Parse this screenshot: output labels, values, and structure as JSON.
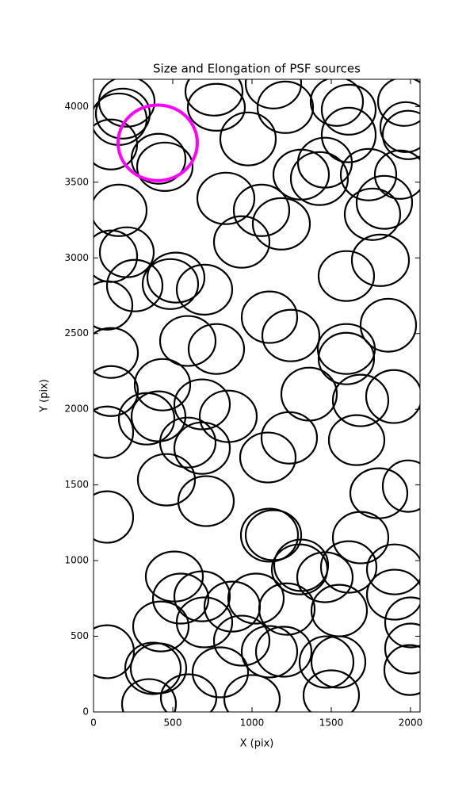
{
  "chart_data": {
    "type": "ellipse",
    "title": "Size and Elongation of PSF sources",
    "x_label": "X (pix)",
    "y_label": "Y (pix)",
    "xlim": [
      0,
      2060
    ],
    "ylim": [
      0,
      4180
    ],
    "xticks": [
      0,
      500,
      1000,
      1500,
      2000
    ],
    "yticks": [
      0,
      500,
      1000,
      1500,
      2000,
      2500,
      3000,
      3500,
      4000
    ],
    "series": [
      {
        "color": "#000000",
        "x": [
          210,
          185,
          160,
          760,
          775,
          1135,
          1210,
          1535,
          1610,
          1960,
          1970,
          1985,
          975,
          110,
          1610,
          410,
          450,
          1310,
          1460,
          1425,
          1735,
          1935,
          835,
          1060,
          1185,
          1835,
          1760,
          160,
          935,
          210,
          110,
          1810,
          1595,
          520,
          485,
          260,
          700,
          85,
          1110,
          1245,
          1860,
          595,
          775,
          110,
          1595,
          1595,
          110,
          1360,
          1685,
          1895,
          435,
          685,
          850,
          410,
          335,
          85,
          1235,
          1660,
          595,
          685,
          1100,
          460,
          1800,
          1985,
          710,
          85,
          1110,
          1135,
          1685,
          1310,
          1300,
          1610,
          1900,
          1460,
          510,
          550,
          685,
          1025,
          875,
          1220,
          1550,
          1900,
          425,
          700,
          935,
          1110,
          1200,
          1545,
          1470,
          2000,
          2000,
          1995,
          85,
          375,
          410,
          800,
          1500,
          600,
          350,
          1000
        ],
        "y": [
          4032,
          3953,
          3916,
          4100,
          3995,
          4152,
          3995,
          4032,
          3979,
          4032,
          3864,
          3812,
          3786,
          3749,
          3812,
          3655,
          3602,
          3550,
          3629,
          3524,
          3550,
          3550,
          3393,
          3314,
          3225,
          3367,
          3288,
          3314,
          3105,
          3037,
          3011,
          2984,
          2880,
          2870,
          2827,
          2817,
          2790,
          2686,
          2608,
          2487,
          2555,
          2451,
          2398,
          2372,
          2398,
          2335,
          2120,
          2100,
          2058,
          2084,
          2162,
          2032,
          1953,
          1953,
          1937,
          1848,
          1811,
          1796,
          1780,
          1743,
          1681,
          1534,
          1445,
          1492,
          1393,
          1288,
          1168,
          1168,
          1152,
          969,
          942,
          958,
          942,
          890,
          895,
          749,
          764,
          749,
          696,
          680,
          670,
          775,
          565,
          592,
          471,
          398,
          398,
          330,
          330,
          592,
          419,
          277,
          398,
          288,
          288,
          262,
          110,
          94,
          52,
          84
        ],
        "width": [
          350,
          340,
          350,
          360,
          360,
          350,
          350,
          330,
          340,
          330,
          320,
          320,
          350,
          330,
          340,
          340,
          350,
          350,
          340,
          360,
          350,
          320,
          360,
          350,
          360,
          350,
          350,
          350,
          350,
          340,
          330,
          360,
          350,
          360,
          350,
          350,
          350,
          320,
          350,
          360,
          350,
          350,
          350,
          340,
          360,
          350,
          340,
          350,
          350,
          350,
          350,
          350,
          360,
          340,
          350,
          330,
          350,
          350,
          350,
          350,
          350,
          360,
          360,
          320,
          350,
          330,
          360,
          350,
          350,
          340,
          350,
          350,
          350,
          350,
          360,
          350,
          350,
          350,
          350,
          350,
          350,
          350,
          350,
          350,
          350,
          350,
          350,
          340,
          340,
          320,
          320,
          320,
          340,
          350,
          350,
          350,
          350,
          350,
          340,
          350
        ],
        "height": [
          330,
          330,
          340,
          320,
          310,
          330,
          340,
          320,
          330,
          320,
          330,
          320,
          350,
          330,
          360,
          330,
          320,
          330,
          330,
          350,
          340,
          320,
          340,
          340,
          340,
          350,
          340,
          340,
          340,
          330,
          340,
          340,
          330,
          330,
          330,
          340,
          330,
          320,
          340,
          340,
          350,
          330,
          330,
          330,
          330,
          340,
          330,
          350,
          340,
          350,
          340,
          330,
          340,
          330,
          340,
          340,
          340,
          330,
          330,
          340,
          330,
          340,
          330,
          340,
          330,
          340,
          350,
          330,
          340,
          340,
          330,
          340,
          330,
          330,
          330,
          330,
          330,
          330,
          330,
          340,
          340,
          330,
          330,
          330,
          330,
          340,
          330,
          340,
          340,
          330,
          330,
          330,
          350,
          340,
          330,
          330,
          330,
          310,
          330,
          320
        ]
      },
      {
        "color": "#ff00ff",
        "x": [
          405
        ],
        "y": [
          3760
        ],
        "width": [
          500
        ],
        "height": [
          500
        ]
      }
    ]
  }
}
